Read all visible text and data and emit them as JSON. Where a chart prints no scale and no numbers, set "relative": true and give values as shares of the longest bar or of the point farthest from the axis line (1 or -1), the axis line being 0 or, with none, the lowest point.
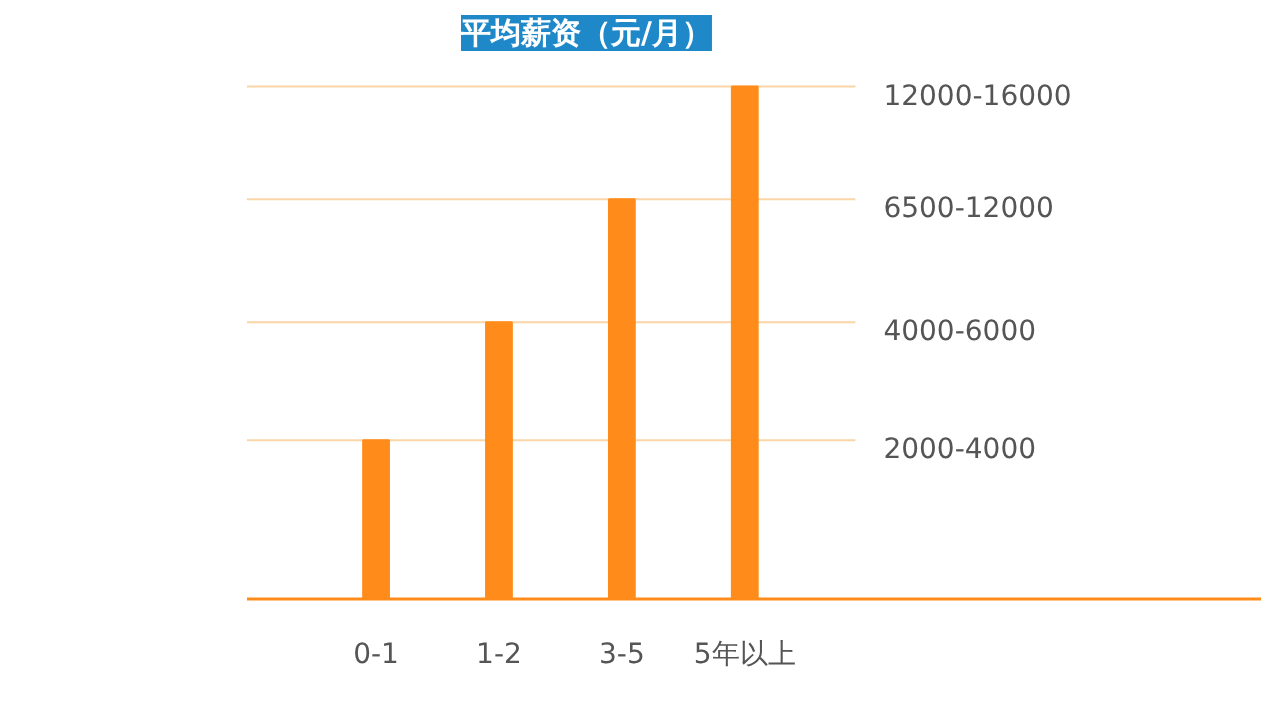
{
  "chart_data": {
    "type": "bar",
    "title": "平均薪资（元/月）",
    "categories": [
      "0-1",
      "1-2",
      "3-5",
      "5年以上"
    ],
    "values": [
      0.31,
      0.54,
      0.78,
      1.0
    ],
    "color": "#ff8c1a",
    "relative": true,
    "ref_lines": [
      {
        "axis": "y",
        "value": 0.31,
        "color": "#fbd5a8"
      },
      {
        "axis": "y",
        "value": 0.54,
        "color": "#fbd5a8"
      },
      {
        "axis": "y",
        "value": 0.78,
        "color": "#fbd5a8"
      },
      {
        "axis": "y",
        "value": 1.0,
        "color": "#fbd5a8"
      }
    ],
    "annotations": [
      "2000-4000",
      "4000-6000",
      "6500-12000",
      "12000-16000"
    ]
  }
}
